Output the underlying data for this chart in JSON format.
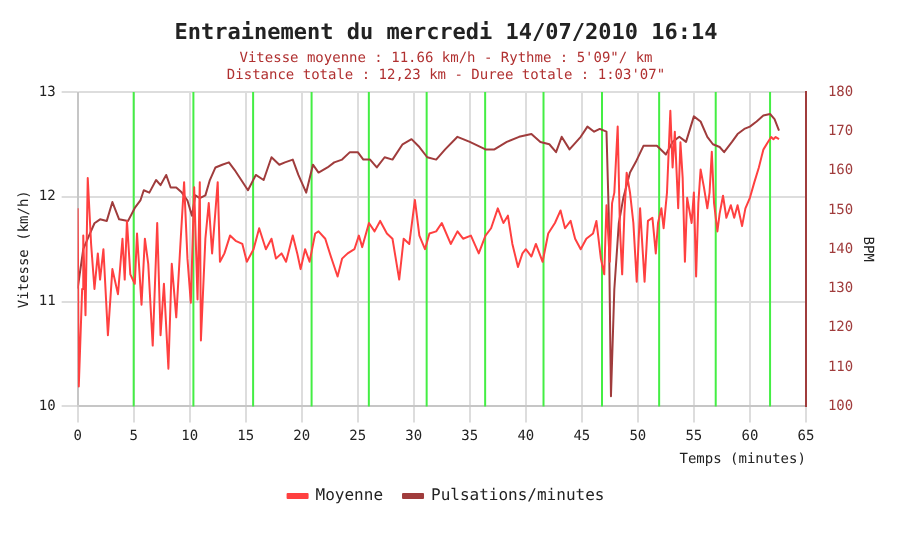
{
  "chart_data": {
    "type": "line",
    "title": "Entrainement du mercredi 14/07/2010 16:14",
    "subtitle": "Vitesse moyenne : 11.66 km/h - Rythme : 5'09\"/ km",
    "annotations": [
      "Distance totale : 12,23 km - Duree totale : 1:03'07\""
    ],
    "xlabel": "Temps (minutes)",
    "ylabel": "Vitesse (km/h)",
    "y2label": "BPM",
    "xlim": [
      0,
      65
    ],
    "xticks": [
      0,
      5,
      10,
      15,
      20,
      25,
      30,
      35,
      40,
      45,
      50,
      55,
      60,
      65
    ],
    "ylim": [
      10,
      13
    ],
    "yticks": [
      10,
      11,
      12,
      13
    ],
    "y2lim": [
      100,
      180
    ],
    "y2ticks": [
      100,
      110,
      120,
      130,
      140,
      150,
      160,
      170,
      180
    ],
    "grid": true,
    "legend": "bottom",
    "marker": "none",
    "line_style": "solid",
    "ref_lines": [
      {
        "axis": "x",
        "value": 5.0,
        "color": "#44ee44"
      },
      {
        "axis": "x",
        "value": 10.33,
        "color": "#44ee44"
      },
      {
        "axis": "x",
        "value": 15.66,
        "color": "#44ee44"
      },
      {
        "axis": "x",
        "value": 20.88,
        "color": "#44ee44"
      },
      {
        "axis": "x",
        "value": 25.99,
        "color": "#44ee44"
      },
      {
        "axis": "x",
        "value": 31.15,
        "color": "#44ee44"
      },
      {
        "axis": "x",
        "value": 36.37,
        "color": "#44ee44"
      },
      {
        "axis": "x",
        "value": 41.58,
        "color": "#44ee44"
      },
      {
        "axis": "x",
        "value": 46.8,
        "color": "#44ee44"
      },
      {
        "axis": "x",
        "value": 51.9,
        "color": "#44ee44"
      },
      {
        "axis": "x",
        "value": 56.95,
        "color": "#44ee44"
      },
      {
        "axis": "x",
        "value": 61.8,
        "color": "#44ee44"
      }
    ],
    "series": [
      {
        "name": "Moyenne",
        "color": "#ff4040",
        "x": [
          0,
          0.1,
          0.4,
          0.5,
          0.7,
          0.9,
          1.2,
          1.5,
          1.8,
          2.0,
          2.3,
          2.7,
          3.1,
          3.6,
          4.0,
          4.2,
          4.4,
          4.7,
          5.1,
          5.3,
          5.7,
          6.0,
          6.3,
          6.7,
          7.1,
          7.4,
          7.7,
          8.1,
          8.4,
          8.8,
          9.2,
          9.5,
          9.8,
          10.1,
          10.4,
          10.7,
          10.9,
          11.0,
          11.4,
          11.7,
          12.0,
          12.5,
          12.7,
          13.1,
          13.6,
          14.1,
          14.7,
          15.1,
          15.7,
          16.2,
          16.8,
          17.3,
          17.7,
          18.2,
          18.6,
          19.2,
          19.6,
          19.9,
          20.3,
          20.7,
          21.2,
          21.5,
          22.1,
          22.6,
          23.2,
          23.6,
          24.1,
          24.7,
          25.1,
          25.4,
          26.0,
          26.5,
          27.0,
          27.6,
          28.1,
          28.7,
          29.1,
          29.6,
          30.1,
          30.5,
          31.0,
          31.4,
          32.0,
          32.5,
          33.3,
          33.9,
          34.4,
          35.1,
          35.8,
          36.4,
          36.9,
          37.5,
          38.0,
          38.4,
          38.8,
          39.3,
          39.7,
          40.0,
          40.5,
          40.9,
          41.5,
          42.0,
          42.6,
          43.1,
          43.5,
          44.0,
          44.4,
          44.9,
          45.4,
          46.0,
          46.3,
          46.7,
          47.0,
          47.2,
          47.5,
          47.7,
          47.9,
          48.2,
          48.4,
          48.6,
          48.8,
          49.0,
          49.3,
          49.6,
          49.9,
          50.2,
          50.6,
          50.9,
          51.3,
          51.6,
          51.8,
          52.1,
          52.3,
          52.6,
          52.9,
          53.1,
          53.3,
          53.6,
          53.8,
          54.0,
          54.2,
          54.4,
          54.8,
          55.0,
          55.2,
          55.4,
          55.6,
          55.9,
          56.2,
          56.4,
          56.6,
          56.8,
          57.1,
          57.3,
          57.6,
          57.9,
          58.3,
          58.6,
          58.9,
          59.3,
          59.6,
          60.0,
          60.4,
          60.8,
          61.2,
          61.6,
          61.9,
          62.1,
          62.3,
          62.6
        ],
        "values": [
          11.89,
          10.19,
          11.12,
          11.63,
          10.87,
          12.18,
          11.55,
          11.12,
          11.46,
          11.21,
          11.5,
          10.68,
          11.31,
          11.07,
          11.6,
          11.21,
          11.77,
          11.26,
          11.17,
          11.65,
          10.97,
          11.6,
          11.36,
          10.58,
          11.75,
          10.68,
          11.17,
          10.36,
          11.36,
          10.85,
          11.6,
          12.14,
          11.41,
          10.99,
          12.09,
          11.02,
          12.14,
          10.63,
          11.6,
          11.94,
          11.46,
          12.14,
          11.38,
          11.46,
          11.63,
          11.58,
          11.55,
          11.38,
          11.5,
          11.7,
          11.5,
          11.6,
          11.41,
          11.46,
          11.38,
          11.63,
          11.46,
          11.31,
          11.5,
          11.38,
          11.65,
          11.67,
          11.6,
          11.43,
          11.24,
          11.41,
          11.46,
          11.5,
          11.63,
          11.52,
          11.75,
          11.67,
          11.77,
          11.65,
          11.6,
          11.21,
          11.6,
          11.55,
          11.97,
          11.63,
          11.5,
          11.65,
          11.67,
          11.75,
          11.55,
          11.67,
          11.6,
          11.63,
          11.46,
          11.63,
          11.7,
          11.89,
          11.75,
          11.82,
          11.55,
          11.33,
          11.46,
          11.5,
          11.43,
          11.55,
          11.38,
          11.65,
          11.75,
          11.87,
          11.7,
          11.77,
          11.6,
          11.5,
          11.6,
          11.65,
          11.77,
          11.41,
          11.26,
          11.92,
          11.38,
          11.94,
          12.04,
          12.67,
          11.7,
          11.26,
          11.84,
          12.23,
          12.04,
          11.75,
          11.19,
          11.89,
          11.19,
          11.77,
          11.8,
          11.46,
          11.75,
          11.89,
          11.7,
          12.04,
          12.82,
          12.28,
          12.62,
          11.89,
          12.52,
          12.18,
          11.38,
          11.99,
          11.75,
          12.04,
          11.24,
          11.94,
          12.26,
          12.09,
          11.89,
          12.04,
          12.43,
          11.94,
          11.67,
          11.84,
          12.01,
          11.8,
          11.92,
          11.8,
          11.92,
          11.72,
          11.89,
          11.99,
          12.14,
          12.28,
          12.45,
          12.52,
          12.57,
          12.55,
          12.57,
          12.55
        ]
      },
      {
        "name": "Pulsations/minutes",
        "color": "#a03c3c",
        "axis": "y2",
        "x": [
          0,
          0.5,
          0.9,
          1.5,
          2.0,
          2.6,
          3.1,
          3.7,
          4.5,
          5.1,
          5.6,
          5.9,
          6.4,
          7.0,
          7.4,
          7.9,
          8.3,
          8.8,
          9.3,
          9.8,
          10.2,
          10.5,
          10.9,
          11.4,
          11.8,
          12.3,
          12.9,
          13.5,
          14.0,
          14.6,
          15.2,
          15.9,
          16.6,
          17.3,
          18.0,
          18.5,
          19.2,
          19.7,
          20.4,
          21.0,
          21.5,
          22.3,
          22.9,
          23.6,
          24.3,
          25.0,
          25.5,
          26.1,
          26.7,
          27.4,
          28.1,
          29.0,
          29.8,
          30.5,
          31.2,
          32.0,
          32.8,
          33.9,
          35.0,
          36.4,
          37.2,
          38.3,
          39.4,
          40.5,
          41.3,
          42.1,
          42.7,
          43.2,
          43.9,
          44.9,
          45.5,
          46.1,
          46.6,
          47.2,
          47.4,
          47.6,
          47.9,
          48.3,
          48.7,
          49.3,
          49.8,
          50.5,
          51.7,
          52.5,
          53.1,
          53.7,
          54.3,
          55.0,
          55.6,
          56.2,
          56.7,
          57.3,
          57.7,
          58.4,
          58.9,
          59.5,
          60.0,
          60.6,
          61.2,
          61.8,
          62.2,
          62.6
        ],
        "values": [
          130,
          140,
          142.7,
          146.6,
          147.6,
          147.2,
          152,
          147.6,
          147.2,
          150.5,
          152.4,
          155,
          154.4,
          157.6,
          156.3,
          158.9,
          155.7,
          155.7,
          154.4,
          152.4,
          148.5,
          153.7,
          153,
          153.7,
          157.6,
          160.8,
          161.5,
          162.1,
          160.2,
          157.6,
          155,
          158.9,
          157.6,
          163.4,
          161.5,
          162.1,
          162.8,
          158.9,
          154.4,
          161.5,
          159.5,
          160.8,
          162.1,
          162.8,
          164.7,
          164.7,
          162.8,
          162.8,
          160.8,
          163.4,
          162.8,
          166.7,
          168,
          166,
          163.4,
          162.8,
          165.4,
          168.6,
          167.3,
          165.4,
          165.4,
          167.3,
          168.6,
          169.3,
          167.3,
          166.7,
          164.7,
          168.6,
          165.4,
          168.6,
          171.2,
          169.9,
          170.6,
          169.9,
          149.2,
          102.6,
          129.8,
          146.6,
          153,
          159.5,
          162.1,
          166.3,
          166.3,
          164.1,
          167.3,
          168.6,
          167.3,
          173.8,
          172.5,
          168.6,
          166.7,
          166,
          164.7,
          167.3,
          169.3,
          170.6,
          171.2,
          172.5,
          174,
          174.4,
          173.1,
          170.2
        ]
      }
    ]
  }
}
